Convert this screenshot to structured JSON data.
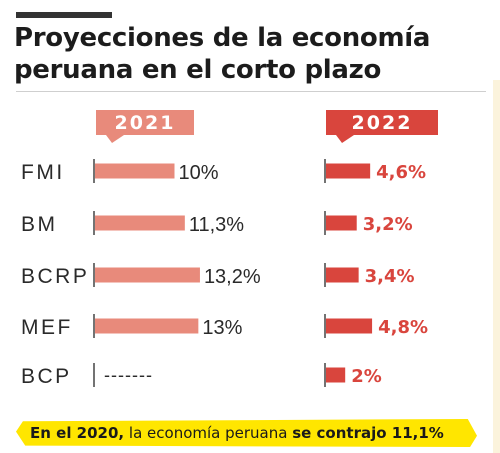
{
  "title_line1": "Proyecciones de la economía",
  "title_line2": "peruana en el corto plazo",
  "colors": {
    "bar_2021": "#e88a7b",
    "bar_2022": "#d9453d",
    "label_2022": "#d9453d",
    "header_2021": "#e88a7b",
    "header_2022": "#d9453d",
    "footer_bg": "#ffe600"
  },
  "chart_data": {
    "type": "bar",
    "orientation": "horizontal",
    "categories": [
      "FMI",
      "BM",
      "BCRP",
      "MEF",
      "BCP"
    ],
    "series": [
      {
        "name": "2021",
        "values": [
          10,
          11.3,
          13.2,
          13,
          null
        ],
        "labels": [
          "10%",
          "11,3%",
          "13,2%",
          "13%",
          "-------"
        ]
      },
      {
        "name": "2022",
        "values": [
          4.6,
          3.2,
          3.4,
          4.8,
          2
        ],
        "labels": [
          "4,6%",
          "3,2%",
          "3,4%",
          "4,8%",
          "2%"
        ]
      }
    ]
  },
  "footer": {
    "part1": "En el 2020,",
    "part2": " la economía peruana ",
    "part3": "se contrajo 11,1%"
  }
}
